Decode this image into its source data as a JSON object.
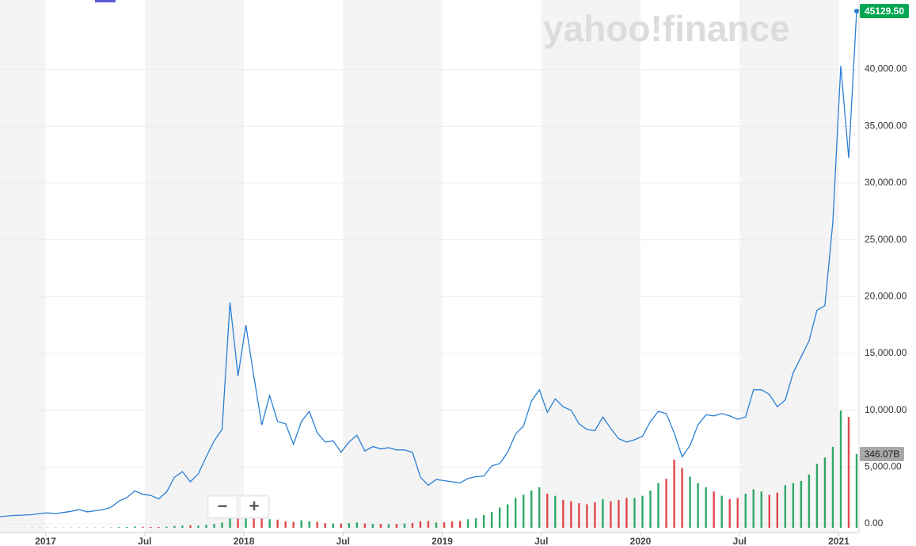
{
  "chart_data": {
    "type": "line",
    "watermark": "yahoo!finance",
    "zoom_controls": [
      "−",
      "+"
    ],
    "xlim": [
      2016.77,
      2021.09
    ],
    "xticks": [
      {
        "value": 2017,
        "label": "2017"
      },
      {
        "value": 2017.5,
        "label": "Jul"
      },
      {
        "value": 2018,
        "label": "2018"
      },
      {
        "value": 2018.5,
        "label": "Jul"
      },
      {
        "value": 2019,
        "label": "2019"
      },
      {
        "value": 2019.5,
        "label": "Jul"
      },
      {
        "value": 2020,
        "label": "2020"
      },
      {
        "value": 2020.5,
        "label": "Jul"
      },
      {
        "value": 2021,
        "label": "2021"
      }
    ],
    "ylim": [
      0,
      45200
    ],
    "yticks": [
      {
        "value": 0,
        "label": "0.00"
      },
      {
        "value": 5000,
        "label": "5,000.00"
      },
      {
        "value": 10000,
        "label": "10,000.00"
      },
      {
        "value": 15000,
        "label": "15,000.00"
      },
      {
        "value": 20000,
        "label": "20,000.00"
      },
      {
        "value": 25000,
        "label": "25,000.00"
      },
      {
        "value": 30000,
        "label": "30,000.00"
      },
      {
        "value": 35000,
        "label": "35,000.00"
      },
      {
        "value": 40000,
        "label": "40,000.00"
      }
    ],
    "y2lim": [
      0,
      2410
    ],
    "grid": true,
    "band_color": "#f4f4f4",
    "x": [
      2016.77,
      2016.81,
      2016.85,
      2016.89,
      2016.93,
      2016.97,
      2017.01,
      2017.05,
      2017.09,
      2017.13,
      2017.17,
      2017.21,
      2017.25,
      2017.29,
      2017.33,
      2017.37,
      2017.41,
      2017.45,
      2017.49,
      2017.53,
      2017.57,
      2017.61,
      2017.65,
      2017.69,
      2017.73,
      2017.77,
      2017.81,
      2017.85,
      2017.89,
      2017.93,
      2017.97,
      2018.01,
      2018.05,
      2018.09,
      2018.13,
      2018.17,
      2018.21,
      2018.25,
      2018.29,
      2018.33,
      2018.37,
      2018.41,
      2018.45,
      2018.49,
      2018.53,
      2018.57,
      2018.61,
      2018.65,
      2018.69,
      2018.73,
      2018.77,
      2018.81,
      2018.85,
      2018.89,
      2018.93,
      2018.97,
      2019.01,
      2019.05,
      2019.09,
      2019.13,
      2019.17,
      2019.21,
      2019.25,
      2019.29,
      2019.33,
      2019.37,
      2019.41,
      2019.45,
      2019.49,
      2019.53,
      2019.57,
      2019.61,
      2019.65,
      2019.69,
      2019.73,
      2019.77,
      2019.81,
      2019.85,
      2019.89,
      2019.93,
      2019.97,
      2020.01,
      2020.05,
      2020.09,
      2020.13,
      2020.17,
      2020.21,
      2020.25,
      2020.29,
      2020.33,
      2020.37,
      2020.41,
      2020.45,
      2020.49,
      2020.53,
      2020.57,
      2020.61,
      2020.65,
      2020.69,
      2020.73,
      2020.77,
      2020.81,
      2020.85,
      2020.89,
      2020.93,
      2020.97,
      2021.01,
      2021.05,
      2021.09
    ],
    "series": [
      {
        "type": "line",
        "color": "#2a7fd4",
        "values": [
          620,
          700,
          740,
          770,
          800,
          900,
          960,
          900,
          1000,
          1100,
          1250,
          1050,
          1150,
          1250,
          1450,
          2000,
          2300,
          2900,
          2600,
          2500,
          2200,
          2800,
          4100,
          4600,
          3700,
          4400,
          5900,
          7300,
          8300,
          19500,
          13000,
          17500,
          13000,
          8700,
          11300,
          9000,
          8800,
          7000,
          9000,
          9900,
          8000,
          7200,
          7300,
          6300,
          7200,
          7800,
          6400,
          6800,
          6600,
          6700,
          6500,
          6500,
          6300,
          4100,
          3400,
          3900,
          3800,
          3700,
          3600,
          4000,
          4150,
          4200,
          5100,
          5300,
          6300,
          7900,
          8600,
          10800,
          11800,
          9800,
          11000,
          10300,
          10000,
          8800,
          8300,
          8200,
          9400,
          8400,
          7500,
          7200,
          7400,
          7700,
          9000,
          9900,
          9700,
          8000,
          5900,
          6900,
          8700,
          9600,
          9500,
          9700,
          9500,
          9200,
          9400,
          11800,
          11800,
          11400,
          10300,
          10900,
          13300,
          14700,
          16100,
          18800,
          19200,
          26500,
          40300,
          32200,
          45129.5
        ]
      },
      {
        "type": "bar",
        "axis": "y2",
        "color_up": "#2ea86a",
        "color_down": "#e0474c",
        "values": [
          0.5,
          0.6,
          0.6,
          0.7,
          0.8,
          1,
          1.2,
          1.1,
          1,
          1.1,
          1.3,
          1.2,
          1.2,
          1.4,
          1.8,
          3,
          4,
          6,
          5,
          4,
          4,
          5,
          8,
          10,
          12,
          10,
          14,
          18,
          25,
          45,
          55,
          50,
          48,
          45,
          40,
          38,
          30,
          28,
          35,
          30,
          28,
          22,
          20,
          20,
          22,
          25,
          20,
          18,
          18,
          17,
          18,
          20,
          22,
          30,
          32,
          25,
          26,
          30,
          32,
          40,
          45,
          60,
          75,
          95,
          110,
          140,
          155,
          175,
          190,
          160,
          150,
          130,
          125,
          115,
          110,
          120,
          135,
          125,
          130,
          140,
          140,
          150,
          175,
          210,
          230,
          320,
          280,
          240,
          210,
          190,
          170,
          150,
          135,
          140,
          160,
          180,
          170,
          155,
          165,
          200,
          210,
          220,
          250,
          300,
          330,
          380,
          550,
          520,
          346.07
        ]
      }
    ],
    "last_price_label": {
      "value": 45129.5,
      "label": "45129.50",
      "color": "#00a651"
    },
    "last_volume_label": {
      "value": 346.07,
      "label": "346.07B",
      "color": "#a8a8a8"
    }
  }
}
